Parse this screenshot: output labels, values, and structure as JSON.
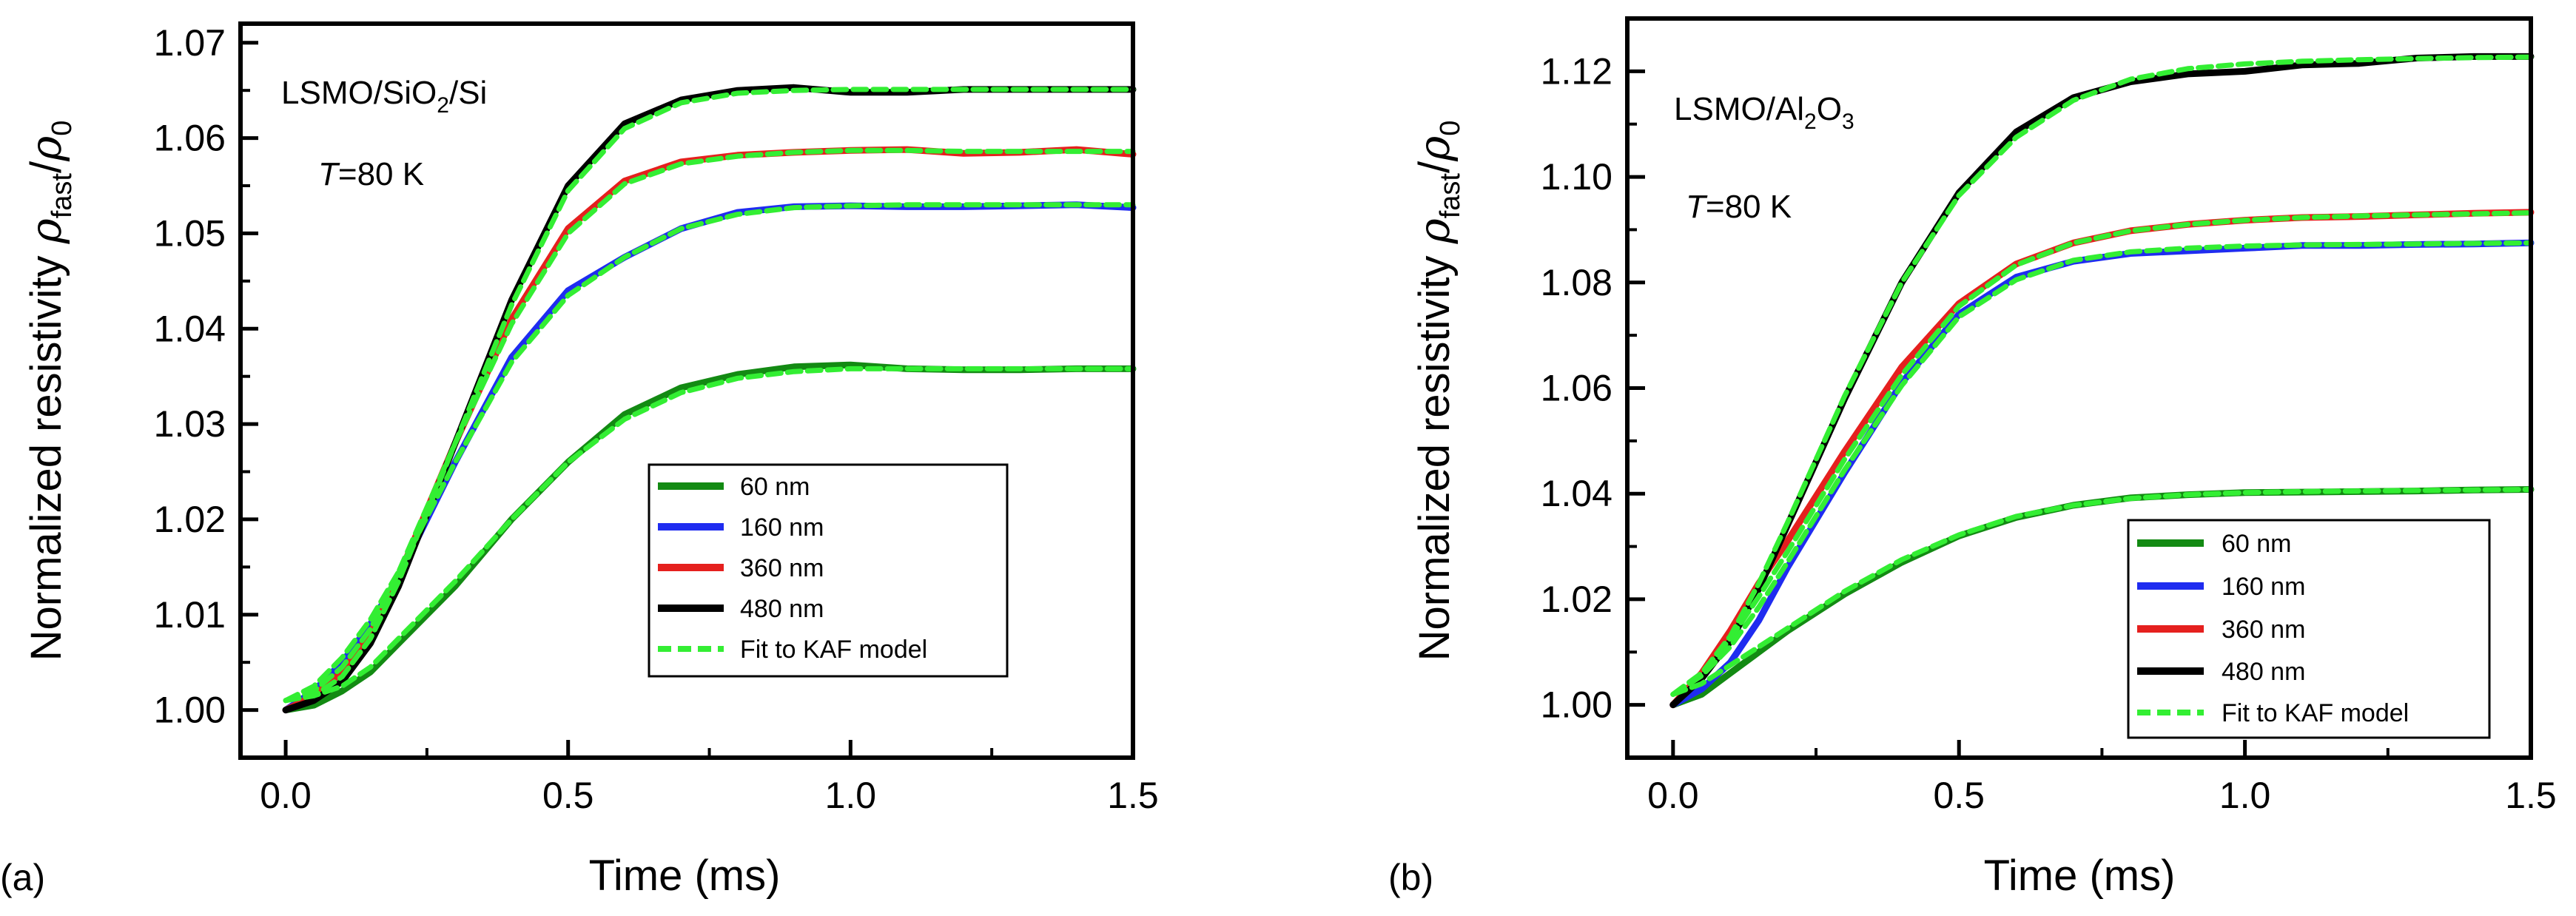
{
  "figure": {
    "x_axis_title": "Time (ms)",
    "y_axis_title_prefix": "Normalized resistivity ",
    "y_axis_rho": "ρ",
    "y_axis_fast_sub": "fast",
    "y_axis_slash": "/",
    "y_axis_zero_sub": "0"
  },
  "chart_data": [
    {
      "type": "line",
      "panel": "(a)",
      "sample_main": "LSMO/SiO",
      "sample_sub": "2",
      "sample_tail": "/Si",
      "temperature_var": "T",
      "temperature_value": "=80 K",
      "xlabel": "Time (ms)",
      "ylabel": "Normalized resistivity ρfast/ρ0",
      "xlim": [
        -0.08,
        1.5
      ],
      "ylim": [
        0.995,
        1.072
      ],
      "xticks": [
        "0.0",
        "0.5",
        "1.0",
        "1.5"
      ],
      "xtick_values": [
        0.0,
        0.5,
        1.0,
        1.5
      ],
      "yticks": [
        "1.00",
        "1.01",
        "1.02",
        "1.03",
        "1.04",
        "1.05",
        "1.06",
        "1.07"
      ],
      "ytick_values": [
        1.0,
        1.01,
        1.02,
        1.03,
        1.04,
        1.05,
        1.06,
        1.07
      ],
      "legend": [
        "60 nm",
        "160 nm",
        "360 nm",
        "480 nm",
        "Fit to KAF model"
      ],
      "legend_position": "lower-right",
      "series": [
        {
          "name": "60 nm",
          "color": "#138a13",
          "style": "solid",
          "x": [
            0.0,
            0.05,
            0.1,
            0.15,
            0.2,
            0.3,
            0.4,
            0.5,
            0.6,
            0.7,
            0.8,
            0.9,
            1.0,
            1.1,
            1.2,
            1.3,
            1.4,
            1.5
          ],
          "y": [
            1.0,
            1.0005,
            1.002,
            1.004,
            1.007,
            1.013,
            1.02,
            1.026,
            1.031,
            1.0338,
            1.0352,
            1.036,
            1.0362,
            1.0358,
            1.0357,
            1.0357,
            1.0358,
            1.0358
          ]
        },
        {
          "name": "160 nm",
          "color": "#1f2cf0",
          "style": "solid",
          "x": [
            0.0,
            0.05,
            0.1,
            0.15,
            0.2,
            0.3,
            0.4,
            0.5,
            0.6,
            0.7,
            0.8,
            0.9,
            1.0,
            1.1,
            1.2,
            1.3,
            1.4,
            1.5
          ],
          "y": [
            1.0,
            1.002,
            1.005,
            1.009,
            1.014,
            1.026,
            1.037,
            1.044,
            1.0475,
            1.0505,
            1.0522,
            1.0528,
            1.0529,
            1.0528,
            1.0528,
            1.0529,
            1.053,
            1.0527
          ]
        },
        {
          "name": "360 nm",
          "color": "#e5201e",
          "style": "solid",
          "x": [
            0.0,
            0.05,
            0.1,
            0.15,
            0.2,
            0.3,
            0.4,
            0.5,
            0.6,
            0.7,
            0.8,
            0.9,
            1.0,
            1.1,
            1.2,
            1.3,
            1.4,
            1.5
          ],
          "y": [
            1.0,
            1.0015,
            1.004,
            1.008,
            1.014,
            1.028,
            1.041,
            1.0505,
            1.0555,
            1.0575,
            1.0582,
            1.0585,
            1.0587,
            1.0588,
            1.0584,
            1.0585,
            1.0588,
            1.0583
          ]
        },
        {
          "name": "480 nm",
          "color": "#000000",
          "style": "solid",
          "x": [
            0.0,
            0.05,
            0.1,
            0.15,
            0.2,
            0.3,
            0.4,
            0.5,
            0.6,
            0.7,
            0.8,
            0.9,
            1.0,
            1.1,
            1.2,
            1.3,
            1.4,
            1.5
          ],
          "y": [
            1.0,
            1.001,
            1.003,
            1.007,
            1.013,
            1.028,
            1.043,
            1.055,
            1.0615,
            1.064,
            1.065,
            1.0653,
            1.0648,
            1.0648,
            1.0651,
            1.0651,
            1.0651,
            1.0651
          ]
        },
        {
          "name": "Fit to KAF model",
          "color": "#33ee33",
          "style": "dashed",
          "curves": [
            {
              "x": [
                0.0,
                0.05,
                0.1,
                0.15,
                0.2,
                0.3,
                0.4,
                0.5,
                0.6,
                0.7,
                0.8,
                0.9,
                1.0,
                1.1,
                1.2,
                1.3,
                1.4,
                1.5
              ],
              "y": [
                1.001,
                1.0015,
                1.0025,
                1.0045,
                1.0075,
                1.0135,
                1.02,
                1.026,
                1.0305,
                1.0333,
                1.0348,
                1.0355,
                1.0358,
                1.0358,
                1.0358,
                1.0358,
                1.0358,
                1.0358
              ]
            },
            {
              "x": [
                0.0,
                0.05,
                0.1,
                0.15,
                0.2,
                0.3,
                0.4,
                0.5,
                0.6,
                0.7,
                0.8,
                0.9,
                1.0,
                1.1,
                1.2,
                1.3,
                1.4,
                1.5
              ],
              "y": [
                1.001,
                1.0025,
                1.0055,
                1.0095,
                1.0145,
                1.026,
                1.0365,
                1.0435,
                1.0475,
                1.0505,
                1.052,
                1.0527,
                1.0529,
                1.053,
                1.053,
                1.053,
                1.053,
                1.053
              ]
            },
            {
              "x": [
                0.0,
                0.05,
                0.1,
                0.15,
                0.2,
                0.3,
                0.4,
                0.5,
                0.6,
                0.7,
                0.8,
                0.9,
                1.0,
                1.1,
                1.2,
                1.3,
                1.4,
                1.5
              ],
              "y": [
                1.001,
                1.002,
                1.0045,
                1.0085,
                1.0145,
                1.028,
                1.0405,
                1.05,
                1.0552,
                1.0573,
                1.0581,
                1.0585,
                1.0587,
                1.0587,
                1.0586,
                1.0586,
                1.0586,
                1.0586
              ]
            },
            {
              "x": [
                0.0,
                0.05,
                0.1,
                0.15,
                0.2,
                0.3,
                0.4,
                0.5,
                0.6,
                0.7,
                0.8,
                0.9,
                1.0,
                1.1,
                1.2,
                1.3,
                1.4,
                1.5
              ],
              "y": [
                1.001,
                1.0015,
                1.0035,
                1.0075,
                1.0135,
                1.028,
                1.0425,
                1.0545,
                1.061,
                1.0637,
                1.0647,
                1.065,
                1.0651,
                1.0651,
                1.0651,
                1.0651,
                1.0651,
                1.0651
              ]
            }
          ]
        }
      ]
    },
    {
      "type": "line",
      "panel": "(b)",
      "sample_main": "LSMO/Al",
      "sample_sub": "2",
      "sample_mid": "O",
      "sample_sub2": "3",
      "temperature_var": "T",
      "temperature_value": "=80 K",
      "xlabel": "Time (ms)",
      "ylabel": "Normalized resistivity ρfast/ρ0",
      "xlim": [
        -0.08,
        1.5
      ],
      "ylim": [
        0.99,
        1.13
      ],
      "xticks": [
        "0.0",
        "0.5",
        "1.0",
        "1.5"
      ],
      "xtick_values": [
        0.0,
        0.5,
        1.0,
        1.5
      ],
      "yticks": [
        "1.00",
        "1.02",
        "1.04",
        "1.06",
        "1.08",
        "1.10",
        "1.12"
      ],
      "ytick_values": [
        1.0,
        1.02,
        1.04,
        1.06,
        1.08,
        1.1,
        1.12
      ],
      "legend": [
        "60 nm",
        "160 nm",
        "360 nm",
        "480 nm",
        "Fit to KAF model"
      ],
      "legend_position": "lower-right",
      "series": [
        {
          "name": "60 nm",
          "color": "#138a13",
          "style": "solid",
          "x": [
            0.0,
            0.05,
            0.1,
            0.15,
            0.2,
            0.3,
            0.4,
            0.5,
            0.6,
            0.7,
            0.8,
            0.9,
            1.0,
            1.1,
            1.2,
            1.3,
            1.4,
            1.5
          ],
          "y": [
            1.0,
            1.002,
            1.006,
            1.01,
            1.014,
            1.021,
            1.027,
            1.032,
            1.0355,
            1.0378,
            1.0392,
            1.0398,
            1.0402,
            1.0403,
            1.0404,
            1.0405,
            1.0407,
            1.0408
          ]
        },
        {
          "name": "160 nm",
          "color": "#1f2cf0",
          "style": "solid",
          "x": [
            0.0,
            0.05,
            0.1,
            0.15,
            0.2,
            0.3,
            0.4,
            0.5,
            0.6,
            0.7,
            0.8,
            0.9,
            1.0,
            1.1,
            1.2,
            1.3,
            1.4,
            1.5
          ],
          "y": [
            1.0,
            1.003,
            1.008,
            1.016,
            1.026,
            1.044,
            1.061,
            1.074,
            1.081,
            1.084,
            1.0855,
            1.086,
            1.0865,
            1.087,
            1.087,
            1.0872,
            1.0873,
            1.0875
          ]
        },
        {
          "name": "360 nm",
          "color": "#e5201e",
          "style": "solid",
          "x": [
            0.0,
            0.05,
            0.1,
            0.15,
            0.2,
            0.3,
            0.4,
            0.5,
            0.6,
            0.7,
            0.8,
            0.9,
            1.0,
            1.1,
            1.2,
            1.3,
            1.4,
            1.5
          ],
          "y": [
            1.0,
            1.006,
            1.014,
            1.023,
            1.031,
            1.048,
            1.064,
            1.076,
            1.0835,
            1.0875,
            1.0898,
            1.091,
            1.0918,
            1.0923,
            1.0925,
            1.0928,
            1.0931,
            1.0933
          ]
        },
        {
          "name": "480 nm",
          "color": "#000000",
          "style": "solid",
          "x": [
            0.0,
            0.05,
            0.1,
            0.15,
            0.2,
            0.3,
            0.4,
            0.5,
            0.6,
            0.7,
            0.8,
            0.9,
            1.0,
            1.1,
            1.2,
            1.3,
            1.4,
            1.5
          ],
          "y": [
            1.0,
            1.005,
            1.012,
            1.022,
            1.034,
            1.058,
            1.08,
            1.097,
            1.1085,
            1.115,
            1.118,
            1.1195,
            1.12,
            1.1212,
            1.1215,
            1.1225,
            1.1228,
            1.1228
          ]
        },
        {
          "name": "Fit to KAF model",
          "color": "#33ee33",
          "style": "dashed",
          "curves": [
            {
              "x": [
                0.0,
                0.05,
                0.1,
                0.15,
                0.2,
                0.3,
                0.4,
                0.5,
                0.6,
                0.7,
                0.8,
                0.9,
                1.0,
                1.1,
                1.2,
                1.3,
                1.4,
                1.5
              ],
              "y": [
                1.002,
                1.004,
                1.0075,
                1.011,
                1.0145,
                1.0215,
                1.0275,
                1.0322,
                1.0357,
                1.0378,
                1.0391,
                1.0398,
                1.0402,
                1.0404,
                1.0405,
                1.0406,
                1.0407,
                1.0408
              ]
            },
            {
              "x": [
                0.0,
                0.05,
                0.1,
                0.15,
                0.2,
                0.3,
                0.4,
                0.5,
                0.6,
                0.7,
                0.8,
                0.9,
                1.0,
                1.1,
                1.2,
                1.3,
                1.4,
                1.5
              ],
              "y": [
                1.002,
                1.0055,
                1.011,
                1.0185,
                1.027,
                1.0445,
                1.0605,
                1.0735,
                1.0805,
                1.0842,
                1.0858,
                1.0865,
                1.0869,
                1.0871,
                1.0872,
                1.0873,
                1.0874,
                1.0875
              ]
            },
            {
              "x": [
                0.0,
                0.05,
                0.1,
                0.15,
                0.2,
                0.3,
                0.4,
                0.5,
                0.6,
                0.7,
                0.8,
                0.9,
                1.0,
                1.1,
                1.2,
                1.3,
                1.4,
                1.5
              ],
              "y": [
                1.002,
                1.006,
                1.0125,
                1.0205,
                1.029,
                1.0465,
                1.0625,
                1.0755,
                1.0833,
                1.0875,
                1.0898,
                1.091,
                1.0918,
                1.0923,
                1.0926,
                1.0928,
                1.093,
                1.0932
              ]
            },
            {
              "x": [
                0.0,
                0.05,
                0.1,
                0.15,
                0.2,
                0.3,
                0.4,
                0.5,
                0.6,
                0.7,
                0.8,
                0.9,
                1.0,
                1.1,
                1.2,
                1.3,
                1.4,
                1.5
              ],
              "y": [
                1.002,
                1.006,
                1.013,
                1.023,
                1.0345,
                1.0585,
                1.08,
                1.0965,
                1.1075,
                1.1145,
                1.1185,
                1.1205,
                1.1214,
                1.1219,
                1.1222,
                1.1224,
                1.1226,
                1.1227
              ]
            }
          ]
        }
      ]
    }
  ]
}
